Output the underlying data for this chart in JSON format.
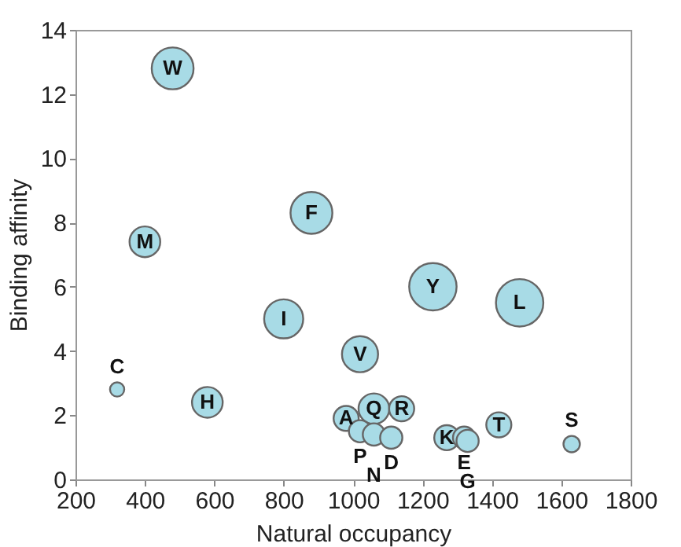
{
  "chart_data": {
    "type": "bubble",
    "xlabel": "Natural occupancy",
    "ylabel": "Binding affinity",
    "xlim": [
      200,
      1800
    ],
    "xticks": [
      200,
      400,
      600,
      800,
      1000,
      1200,
      1400,
      1600,
      1800
    ],
    "ylim": [
      0,
      14
    ],
    "yticks": [
      0,
      2,
      4,
      6,
      8,
      10,
      12,
      14
    ],
    "grid": false,
    "legend": false,
    "series": [
      {
        "name": "W",
        "color": "#a8dbe6",
        "x": [
          480
        ],
        "values": [
          12.8
        ],
        "sizes": [
          0.78
        ]
      },
      {
        "name": "M",
        "color": "#a8dbe6",
        "x": [
          400
        ],
        "values": [
          7.4
        ],
        "sizes": [
          0.42
        ]
      },
      {
        "name": "F",
        "color": "#a8dbe6",
        "x": [
          880
        ],
        "values": [
          8.3
        ],
        "sizes": [
          0.78
        ]
      },
      {
        "name": "Y",
        "color": "#a8dbe6",
        "x": [
          1230
        ],
        "values": [
          6.0
        ],
        "sizes": [
          1
        ]
      },
      {
        "name": "L",
        "color": "#a8dbe6",
        "x": [
          1480
        ],
        "values": [
          5.5
        ],
        "sizes": [
          1
        ]
      },
      {
        "name": "I",
        "color": "#a8dbe6",
        "x": [
          800
        ],
        "values": [
          5.0
        ],
        "sizes": [
          0.68
        ]
      },
      {
        "name": "V",
        "color": "#a8dbe6",
        "x": [
          1020
        ],
        "values": [
          3.9
        ],
        "sizes": [
          0.58
        ]
      },
      {
        "name": "C",
        "color": "#a8dbe6",
        "x": [
          320
        ],
        "values": [
          2.8
        ],
        "sizes": [
          0.09
        ]
      },
      {
        "name": "H",
        "color": "#a8dbe6",
        "x": [
          580
        ],
        "values": [
          2.4
        ],
        "sizes": [
          0.42
        ]
      },
      {
        "name": "Q",
        "color": "#a8dbe6",
        "x": [
          1060
        ],
        "values": [
          2.2
        ],
        "sizes": [
          0.42
        ]
      },
      {
        "name": "R",
        "color": "#a8dbe6",
        "x": [
          1140
        ],
        "values": [
          2.2
        ],
        "sizes": [
          0.28
        ]
      },
      {
        "name": "A",
        "color": "#a8dbe6",
        "x": [
          980
        ],
        "values": [
          1.9
        ],
        "sizes": [
          0.28
        ]
      },
      {
        "name": "P",
        "color": "#a8dbe6",
        "x": [
          1020
        ],
        "values": [
          1.5
        ],
        "sizes": [
          0.22
        ]
      },
      {
        "name": "N",
        "color": "#a8dbe6",
        "x": [
          1060
        ],
        "values": [
          1.4
        ],
        "sizes": [
          0.22
        ]
      },
      {
        "name": "D",
        "color": "#a8dbe6",
        "x": [
          1110
        ],
        "values": [
          1.3
        ],
        "sizes": [
          0.22
        ]
      },
      {
        "name": "K",
        "color": "#a8dbe6",
        "x": [
          1270
        ],
        "values": [
          1.3
        ],
        "sizes": [
          0.28
        ]
      },
      {
        "name": "E",
        "color": "#a8dbe6",
        "x": [
          1320
        ],
        "values": [
          1.3
        ],
        "sizes": [
          0.22
        ]
      },
      {
        "name": "G",
        "color": "#a8dbe6",
        "x": [
          1330
        ],
        "values": [
          1.2
        ],
        "sizes": [
          0.22
        ]
      },
      {
        "name": "T",
        "color": "#a8dbe6",
        "x": [
          1420
        ],
        "values": [
          1.7
        ],
        "sizes": [
          0.28
        ]
      },
      {
        "name": "S",
        "color": "#a8dbe6",
        "x": [
          1630
        ],
        "values": [
          1.1
        ],
        "sizes": [
          0.12
        ]
      }
    ]
  }
}
